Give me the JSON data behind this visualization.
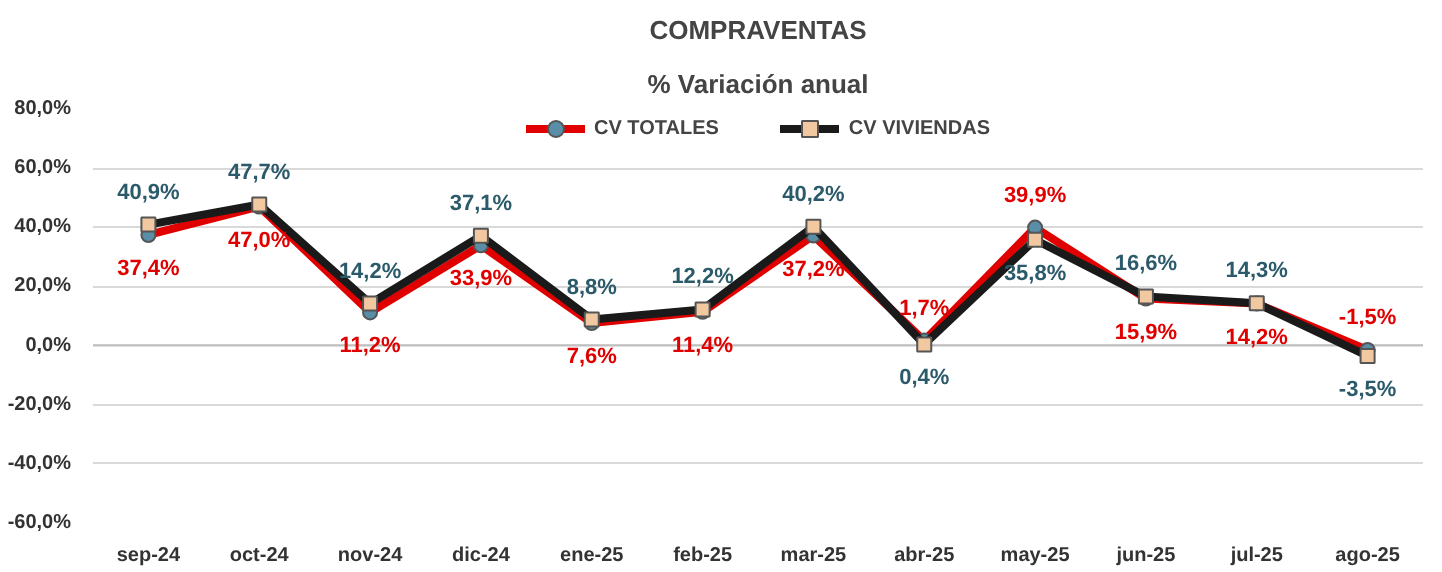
{
  "chart_data": {
    "type": "line",
    "title": "COMPRAVENTAS",
    "subtitle": "% Variación anual",
    "categories": [
      "sep-24",
      "oct-24",
      "nov-24",
      "dic-24",
      "ene-25",
      "feb-25",
      "mar-25",
      "abr-25",
      "may-25",
      "jun-25",
      "jul-25",
      "ago-25"
    ],
    "series": [
      {
        "name": "CV TOTALES",
        "color": "#e00000",
        "marker": "circle",
        "values": [
          37.4,
          47.0,
          11.2,
          33.9,
          7.6,
          11.4,
          37.2,
          1.7,
          39.9,
          15.9,
          14.2,
          -1.5
        ],
        "value_labels": [
          "37,4%",
          "47,0%",
          "11,2%",
          "33,9%",
          "7,6%",
          "11,4%",
          "37,2%",
          "1,7%",
          "39,9%",
          "15,9%",
          "14,2%",
          "-1,5%"
        ]
      },
      {
        "name": "CV VIVIENDAS",
        "color": "#1a1a1a",
        "marker": "square",
        "values": [
          40.9,
          47.7,
          14.2,
          37.1,
          8.8,
          12.2,
          40.2,
          0.4,
          35.8,
          16.6,
          14.3,
          -3.5
        ],
        "value_labels": [
          "40,9%",
          "47,7%",
          "14,2%",
          "37,1%",
          "8,8%",
          "12,2%",
          "40,2%",
          "0,4%",
          "35,8%",
          "16,6%",
          "14,3%",
          "-3,5%"
        ]
      }
    ],
    "ylim": [
      -60,
      80
    ],
    "yticks": [
      {
        "value": -60,
        "label": "-60,0%"
      },
      {
        "value": -40,
        "label": "-40,0%"
      },
      {
        "value": -20,
        "label": "-20,0%"
      },
      {
        "value": 0,
        "label": "0,0%"
      },
      {
        "value": 20,
        "label": "20,0%"
      },
      {
        "value": 40,
        "label": "40,0%"
      },
      {
        "value": 60,
        "label": "60,0%"
      },
      {
        "value": 80,
        "label": "80,0%"
      }
    ],
    "grid": "y",
    "legend": "top"
  }
}
